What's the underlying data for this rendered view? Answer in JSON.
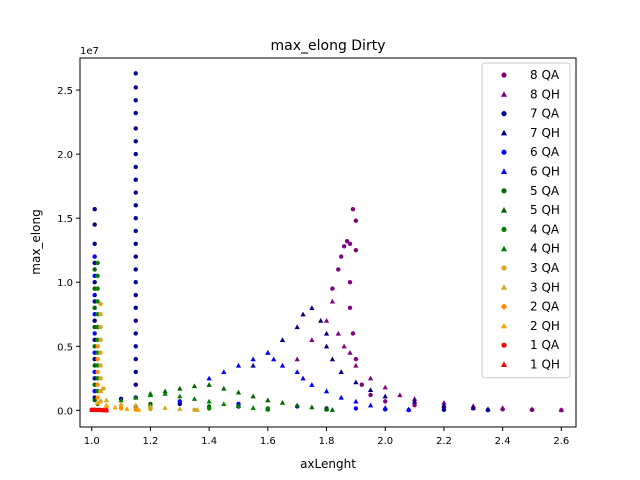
{
  "chart_data": {
    "type": "scatter",
    "title": "max_elong Dirty",
    "xlabel": "axLenght",
    "ylabel": "max_elong",
    "y_offset_label": "1e7",
    "xlim": [
      0.96,
      2.65
    ],
    "ylim": [
      -1300000,
      27500000
    ],
    "x_ticks": [
      1.0,
      1.2,
      1.4,
      1.6,
      1.8,
      2.0,
      2.2,
      2.4,
      2.6
    ],
    "x_tick_labels": [
      "1.0",
      "1.2",
      "1.4",
      "1.6",
      "1.8",
      "2.0",
      "2.2",
      "2.4",
      "2.6"
    ],
    "y_ticks": [
      0,
      5000000,
      10000000,
      15000000,
      20000000,
      25000000
    ],
    "y_tick_labels": [
      "0.0",
      "0.5",
      "1.0",
      "1.5",
      "2.0",
      "2.5"
    ],
    "grid": false,
    "legend_position": "top-right",
    "series": [
      {
        "name": "8 QA",
        "marker": "circle",
        "color": "#800080",
        "points": [
          [
            1.82,
            9500000
          ],
          [
            1.84,
            11000000
          ],
          [
            1.85,
            12000000
          ],
          [
            1.86,
            12800000
          ],
          [
            1.87,
            13200000
          ],
          [
            1.88,
            13000000
          ],
          [
            1.89,
            15700000
          ],
          [
            1.9,
            14800000
          ],
          [
            1.9,
            12500000
          ],
          [
            1.88,
            10000000
          ],
          [
            1.88,
            8000000
          ],
          [
            1.89,
            6000000
          ],
          [
            1.9,
            4000000
          ],
          [
            1.92,
            2000000
          ],
          [
            1.95,
            1200000
          ],
          [
            2.0,
            700000
          ],
          [
            2.1,
            400000
          ],
          [
            2.2,
            250000
          ],
          [
            2.3,
            150000
          ],
          [
            2.4,
            80000
          ],
          [
            2.5,
            40000
          ],
          [
            2.6,
            10000
          ]
        ]
      },
      {
        "name": "8 QH",
        "marker": "triangle",
        "color": "#800080",
        "points": [
          [
            1.7,
            4000000
          ],
          [
            1.75,
            5500000
          ],
          [
            1.8,
            7000000
          ],
          [
            1.82,
            8500000
          ],
          [
            1.84,
            6000000
          ],
          [
            1.86,
            5000000
          ],
          [
            1.88,
            4500000
          ],
          [
            1.9,
            3500000
          ],
          [
            1.95,
            2500000
          ],
          [
            2.0,
            1800000
          ],
          [
            2.05,
            1200000
          ],
          [
            2.1,
            900000
          ],
          [
            2.2,
            600000
          ],
          [
            2.3,
            350000
          ],
          [
            2.4,
            200000
          ],
          [
            2.5,
            100000
          ],
          [
            2.6,
            50000
          ]
        ]
      },
      {
        "name": "7 QA",
        "marker": "circle",
        "color": "#00008b",
        "points": [
          [
            1.15,
            26300000
          ],
          [
            1.15,
            25200000
          ],
          [
            1.15,
            24200000
          ],
          [
            1.15,
            23200000
          ],
          [
            1.15,
            22000000
          ],
          [
            1.15,
            21000000
          ],
          [
            1.15,
            20000000
          ],
          [
            1.15,
            19000000
          ],
          [
            1.15,
            18000000
          ],
          [
            1.15,
            17000000
          ],
          [
            1.15,
            16000000
          ],
          [
            1.15,
            15000000
          ],
          [
            1.15,
            14000000
          ],
          [
            1.15,
            13000000
          ],
          [
            1.15,
            12000000
          ],
          [
            1.15,
            11000000
          ],
          [
            1.15,
            10000000
          ],
          [
            1.15,
            9000000
          ],
          [
            1.15,
            8000000
          ],
          [
            1.15,
            7000000
          ],
          [
            1.15,
            6000000
          ],
          [
            1.15,
            5000000
          ],
          [
            1.15,
            4000000
          ],
          [
            1.15,
            3000000
          ],
          [
            1.15,
            2000000
          ],
          [
            1.15,
            1000000
          ],
          [
            1.15,
            300000
          ],
          [
            1.1,
            900000
          ],
          [
            1.01,
            15700000
          ],
          [
            1.01,
            14500000
          ],
          [
            1.01,
            13000000
          ],
          [
            1.01,
            11500000
          ],
          [
            1.01,
            10000000
          ],
          [
            1.01,
            8500000
          ],
          [
            1.01,
            7000000
          ],
          [
            1.01,
            5500000
          ],
          [
            1.01,
            4000000
          ],
          [
            1.01,
            2500000
          ],
          [
            1.01,
            1000000
          ],
          [
            1.3,
            500000
          ],
          [
            1.5,
            300000
          ],
          [
            1.8,
            150000
          ],
          [
            2.0,
            80000
          ],
          [
            2.2,
            40000
          ],
          [
            2.35,
            20000
          ]
        ]
      },
      {
        "name": "7 QH",
        "marker": "triangle",
        "color": "#00008b",
        "points": [
          [
            1.55,
            3500000
          ],
          [
            1.6,
            4500000
          ],
          [
            1.65,
            5500000
          ],
          [
            1.7,
            6500000
          ],
          [
            1.72,
            7500000
          ],
          [
            1.75,
            8000000
          ],
          [
            1.78,
            7000000
          ],
          [
            1.8,
            6000000
          ],
          [
            1.8,
            5000000
          ],
          [
            1.82,
            4000000
          ],
          [
            1.85,
            3000000
          ],
          [
            1.9,
            2200000
          ],
          [
            1.95,
            1600000
          ],
          [
            2.0,
            1100000
          ],
          [
            2.1,
            700000
          ],
          [
            2.2,
            400000
          ],
          [
            2.3,
            200000
          ],
          [
            2.35,
            100000
          ]
        ]
      },
      {
        "name": "6 QA",
        "marker": "circle",
        "color": "#0000ff",
        "points": [
          [
            1.01,
            12000000
          ],
          [
            1.01,
            10500000
          ],
          [
            1.01,
            9000000
          ],
          [
            1.01,
            7500000
          ],
          [
            1.01,
            6000000
          ],
          [
            1.01,
            4500000
          ],
          [
            1.01,
            3000000
          ],
          [
            1.01,
            1500000
          ],
          [
            1.3,
            700000
          ],
          [
            1.5,
            500000
          ],
          [
            1.7,
            300000
          ],
          [
            1.9,
            150000
          ],
          [
            2.0,
            80000
          ],
          [
            2.08,
            20000
          ]
        ]
      },
      {
        "name": "6 QH",
        "marker": "triangle",
        "color": "#0000ff",
        "points": [
          [
            1.4,
            2500000
          ],
          [
            1.45,
            3000000
          ],
          [
            1.5,
            3500000
          ],
          [
            1.55,
            4000000
          ],
          [
            1.6,
            4500000
          ],
          [
            1.62,
            4000000
          ],
          [
            1.65,
            3500000
          ],
          [
            1.7,
            3000000
          ],
          [
            1.72,
            2500000
          ],
          [
            1.75,
            2000000
          ],
          [
            1.8,
            1500000
          ],
          [
            1.85,
            1000000
          ],
          [
            1.9,
            700000
          ],
          [
            1.95,
            400000
          ],
          [
            2.0,
            200000
          ],
          [
            2.08,
            80000
          ]
        ]
      },
      {
        "name": "5 QA",
        "marker": "circle",
        "color": "#006400",
        "points": [
          [
            1.01,
            11000000
          ],
          [
            1.01,
            9500000
          ],
          [
            1.01,
            8000000
          ],
          [
            1.01,
            6500000
          ],
          [
            1.01,
            5000000
          ],
          [
            1.01,
            3500000
          ],
          [
            1.01,
            2000000
          ],
          [
            1.01,
            800000
          ],
          [
            1.2,
            500000
          ],
          [
            1.4,
            300000
          ],
          [
            1.6,
            150000
          ],
          [
            1.8,
            60000
          ]
        ]
      },
      {
        "name": "5 QH",
        "marker": "triangle",
        "color": "#006400",
        "points": [
          [
            1.2,
            1300000
          ],
          [
            1.25,
            1500000
          ],
          [
            1.3,
            1700000
          ],
          [
            1.35,
            1900000
          ],
          [
            1.4,
            2000000
          ],
          [
            1.45,
            1700000
          ],
          [
            1.5,
            1400000
          ],
          [
            1.55,
            1100000
          ],
          [
            1.6,
            800000
          ],
          [
            1.65,
            600000
          ],
          [
            1.7,
            400000
          ],
          [
            1.75,
            250000
          ],
          [
            1.8,
            120000
          ],
          [
            1.82,
            50000
          ]
        ]
      },
      {
        "name": "4 QA",
        "marker": "circle",
        "color": "#008000",
        "points": [
          [
            1.02,
            11500000
          ],
          [
            1.02,
            10500000
          ],
          [
            1.02,
            9500000
          ],
          [
            1.02,
            8500000
          ],
          [
            1.02,
            7500000
          ],
          [
            1.02,
            6500000
          ],
          [
            1.02,
            5500000
          ],
          [
            1.02,
            4500000
          ],
          [
            1.02,
            3500000
          ],
          [
            1.02,
            2500000
          ],
          [
            1.02,
            1500000
          ],
          [
            1.02,
            500000
          ],
          [
            1.2,
            300000
          ],
          [
            1.4,
            150000
          ],
          [
            1.6,
            60000
          ]
        ]
      },
      {
        "name": "4 QH",
        "marker": "triangle",
        "color": "#008000",
        "points": [
          [
            1.1,
            800000
          ],
          [
            1.15,
            1000000
          ],
          [
            1.2,
            1200000
          ],
          [
            1.25,
            1300000
          ],
          [
            1.3,
            1100000
          ],
          [
            1.35,
            900000
          ],
          [
            1.4,
            700000
          ],
          [
            1.45,
            500000
          ],
          [
            1.5,
            350000
          ],
          [
            1.55,
            200000
          ],
          [
            1.6,
            100000
          ]
        ]
      },
      {
        "name": "3 QA",
        "marker": "circle",
        "color": "#daa520",
        "points": [
          [
            1.03,
            8300000
          ],
          [
            1.03,
            7500000
          ],
          [
            1.03,
            6500000
          ],
          [
            1.03,
            5500000
          ],
          [
            1.03,
            4500000
          ],
          [
            1.03,
            3500000
          ],
          [
            1.03,
            2500000
          ],
          [
            1.03,
            1500000
          ],
          [
            1.03,
            700000
          ],
          [
            1.04,
            1700000
          ],
          [
            1.1,
            200000
          ],
          [
            1.2,
            100000
          ],
          [
            1.35,
            40000
          ]
        ]
      },
      {
        "name": "3 QH",
        "marker": "triangle",
        "color": "#daa520",
        "points": [
          [
            1.03,
            1500000
          ],
          [
            1.05,
            800000
          ],
          [
            1.1,
            500000
          ],
          [
            1.15,
            400000
          ],
          [
            1.2,
            300000
          ],
          [
            1.25,
            200000
          ],
          [
            1.3,
            120000
          ],
          [
            1.36,
            50000
          ]
        ]
      },
      {
        "name": "2 QA",
        "marker": "circle",
        "color": "#ff8c00",
        "points": [
          [
            1.02,
            5000000
          ],
          [
            1.02,
            4000000
          ],
          [
            1.02,
            3000000
          ],
          [
            1.02,
            2000000
          ],
          [
            1.02,
            1000000
          ],
          [
            1.05,
            300000
          ],
          [
            1.1,
            150000
          ],
          [
            1.15,
            60000
          ]
        ]
      },
      {
        "name": "2 QH",
        "marker": "triangle",
        "color": "#ffa500",
        "points": [
          [
            1.02,
            600000
          ],
          [
            1.05,
            400000
          ],
          [
            1.08,
            250000
          ],
          [
            1.12,
            120000
          ],
          [
            1.16,
            50000
          ]
        ]
      },
      {
        "name": "1 QA",
        "marker": "circle",
        "color": "#ff0000",
        "points": [
          [
            1.0,
            50000
          ],
          [
            1.01,
            50000
          ],
          [
            1.02,
            40000
          ],
          [
            1.03,
            30000
          ],
          [
            1.04,
            20000
          ],
          [
            1.05,
            10000
          ]
        ]
      },
      {
        "name": "1 QH",
        "marker": "triangle",
        "color": "#ff0000",
        "points": [
          [
            1.0,
            40000
          ],
          [
            1.02,
            30000
          ],
          [
            1.04,
            20000
          ],
          [
            1.05,
            10000
          ]
        ]
      }
    ]
  }
}
